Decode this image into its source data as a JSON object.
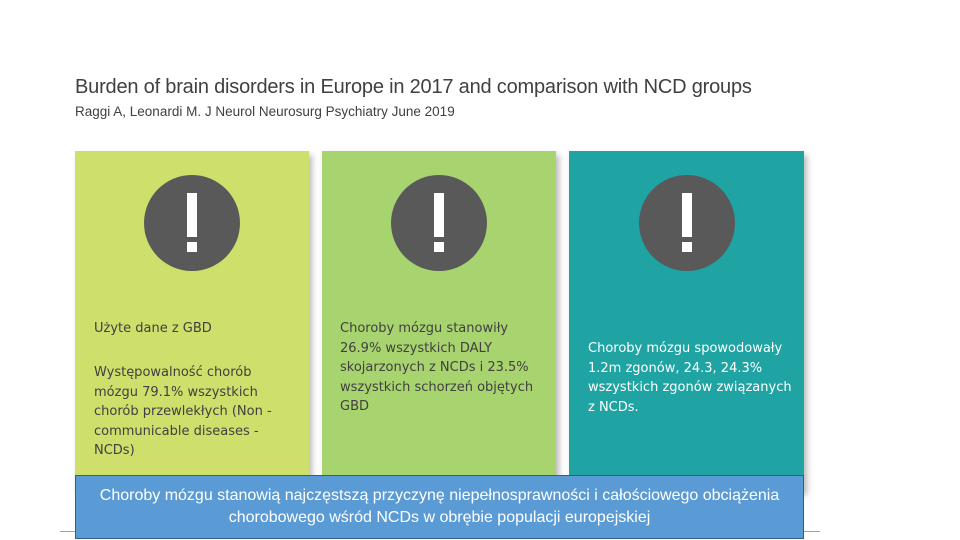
{
  "header": {
    "title": "Burden of brain disorders in Europe in 2017 and comparison with NCD groups",
    "subtitle": "Raggi A, Leonardi M. J Neurol Neurosurg Psychiatry June 2019"
  },
  "cards": [
    {
      "color": "#cfdf6b",
      "icon": "exclamation-icon",
      "texts": [
        "Użyte dane z GBD",
        "Występowalność chorób mózgu 79.1% wszystkich chorób przewlekłych (Non -communicable diseases - NCDs)"
      ]
    },
    {
      "color": "#a8d46f",
      "icon": "exclamation-icon",
      "texts": [
        "Choroby mózgu stanowiły 26.9% wszystkich DALY skojarzonych z NCDs i 23.5% wszystkich schorzeń objętych GBD"
      ]
    },
    {
      "color": "#1fa3a3",
      "icon": "exclamation-icon",
      "texts": [
        "Choroby mózgu spowodowały 1.2m zgonów, 24.3, 24.3% wszystkich zgonów związanych z NCDs."
      ]
    }
  ],
  "banner": {
    "text": "Choroby mózgu stanowią najczęstszą przyczynę niepełnosprawności i całościowego obciążenia chorobowego wśród NCDs w obrębie populacji europejskiej",
    "color": "#5b9bd5"
  }
}
